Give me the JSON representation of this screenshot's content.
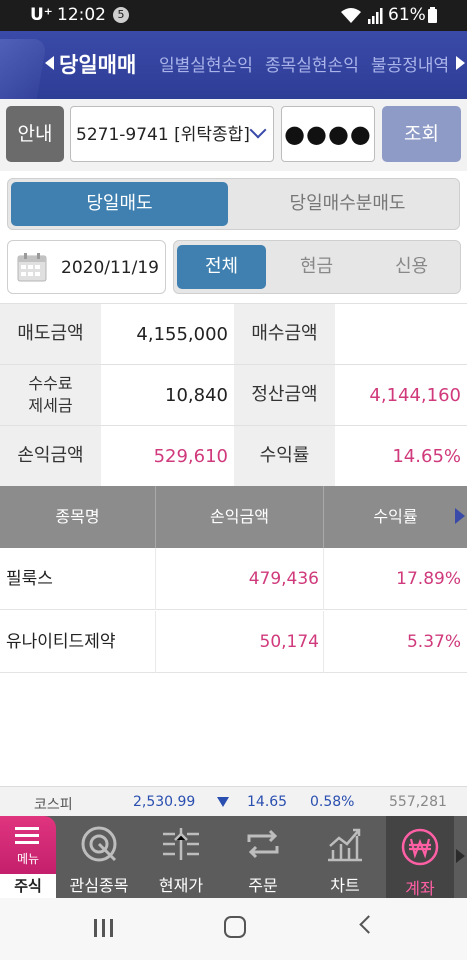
{
  "status_bar": {
    "carrier": "U⁺",
    "time": "12:02",
    "notification_count": "5",
    "battery": "61%",
    "icons": [
      "wifi-icon",
      "signal-icon",
      "battery-icon"
    ]
  },
  "top_nav": {
    "tabs": [
      {
        "label": "당일매매",
        "active": true
      },
      {
        "label": "일별실현손익",
        "active": false
      },
      {
        "label": "종목실현손익",
        "active": false
      },
      {
        "label": "불공정내역",
        "active": false
      }
    ]
  },
  "account": {
    "info_button": "안내",
    "account_number": "5271-9741 [위탁종합]",
    "password_mask": "●●●●",
    "search_button": "조회"
  },
  "segment": {
    "options": [
      "당일매도",
      "당일매수분매도"
    ],
    "selected": 0
  },
  "filter": {
    "date": "2020/11/19",
    "range_options": [
      "전체",
      "현금",
      "신용"
    ],
    "selected": 0
  },
  "summary": {
    "sell_amount_label": "매도금액",
    "sell_amount": "4,155,000",
    "buy_amount_label": "매수금액",
    "buy_amount": "",
    "fee_tax_label_1": "수수료",
    "fee_tax_label_2": "제세금",
    "fee_tax": "10,840",
    "settlement_label": "정산금액",
    "settlement": "4,144,160",
    "pl_label": "손익금액",
    "pl": "529,610",
    "return_label": "수익률",
    "return_rate": "14.65%"
  },
  "table": {
    "headers": [
      "종목명",
      "손익금액",
      "수익률"
    ],
    "rows": [
      {
        "name": "필룩스",
        "pl": "479,436",
        "rate": "17.89%"
      },
      {
        "name": "유나이티드제약",
        "pl": "50,174",
        "rate": "5.37%"
      }
    ]
  },
  "index_bar": {
    "name": "코스피",
    "value": "2,530.99",
    "change": "14.65",
    "change_pct": "0.58%",
    "volume": "557,281",
    "down_color": "#2a4fb0"
  },
  "bottom_nav": {
    "menu_label": "메뉴",
    "menu_section": "주식",
    "items": [
      {
        "label": "관심종목",
        "icon": "watchlist-icon"
      },
      {
        "label": "현재가",
        "icon": "current-price-icon"
      },
      {
        "label": "주문",
        "icon": "order-icon"
      },
      {
        "label": "차트",
        "icon": "chart-icon"
      },
      {
        "label": "계좌",
        "icon": "won-account-icon",
        "active": true
      }
    ]
  },
  "colors": {
    "nav_blue": "#2e3d96",
    "active_blue": "#3f80b0",
    "profit_pink": "#d03a7c",
    "menu_pink": "#d22a75"
  }
}
